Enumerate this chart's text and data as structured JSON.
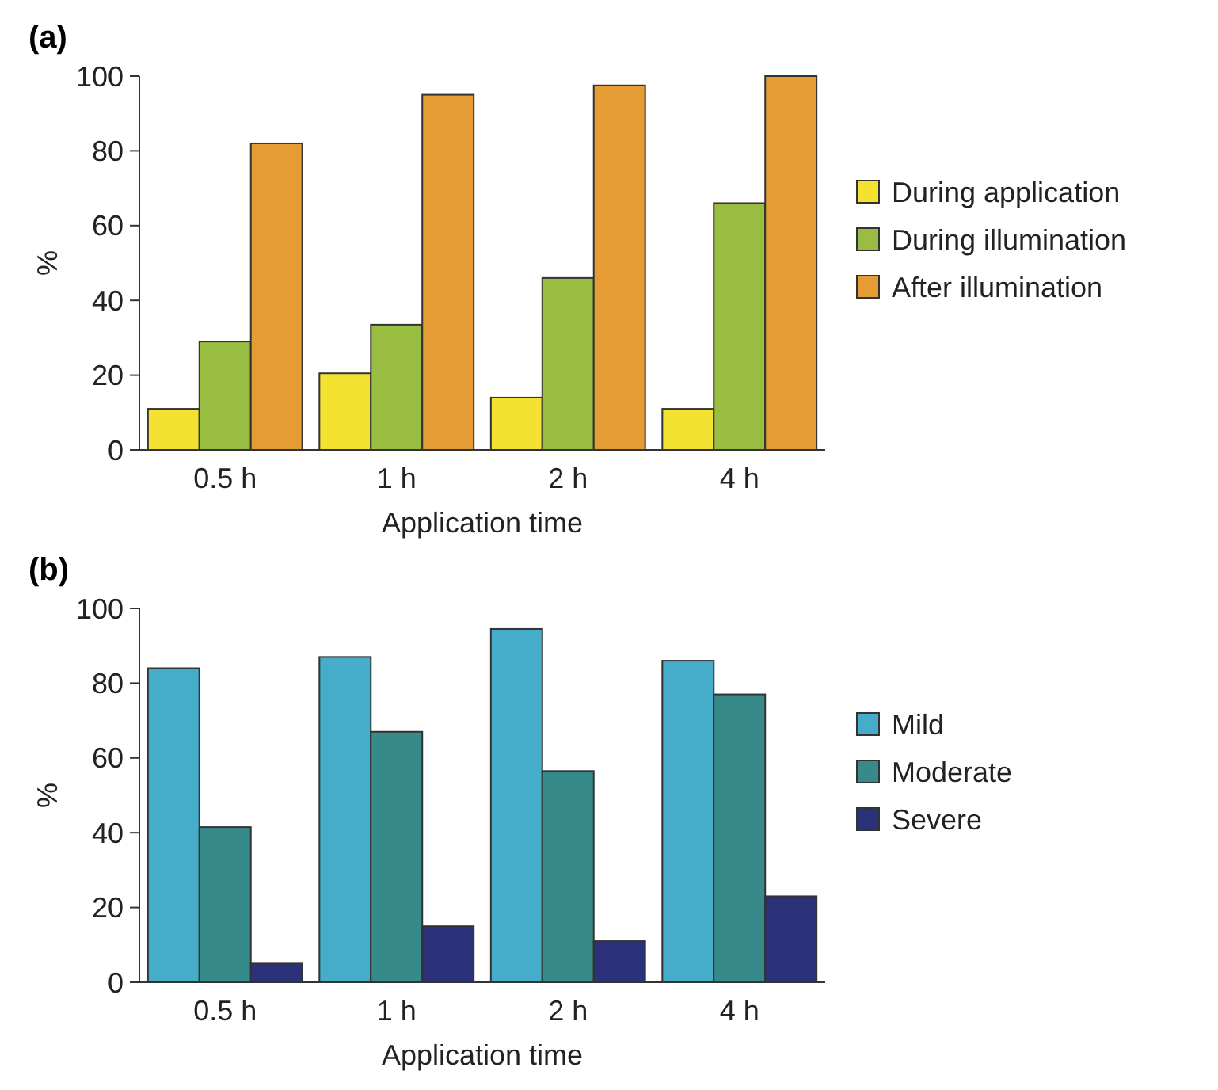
{
  "chart_data": [
    {
      "type": "bar",
      "title": "(a)",
      "xlabel": "Application time",
      "ylabel": "%",
      "categories": [
        "0.5 h",
        "1 h",
        "2 h",
        "4 h"
      ],
      "ylim": [
        0,
        100
      ],
      "yticks": [
        0,
        20,
        40,
        60,
        80,
        100
      ],
      "legend": "right",
      "series": [
        {
          "name": "During application",
          "color": "#f3e232",
          "values": [
            11,
            20.5,
            14,
            11
          ]
        },
        {
          "name": "During illumination",
          "color": "#98bd41",
          "values": [
            29,
            33.5,
            46,
            66
          ]
        },
        {
          "name": "After illumination",
          "color": "#e69c35",
          "values": [
            82,
            95,
            97.5,
            100
          ]
        }
      ]
    },
    {
      "type": "bar",
      "title": "(b)",
      "xlabel": "Application time",
      "ylabel": "%",
      "categories": [
        "0.5 h",
        "1 h",
        "2 h",
        "4 h"
      ],
      "ylim": [
        0,
        100
      ],
      "yticks": [
        0,
        20,
        40,
        60,
        80,
        100
      ],
      "legend": "right",
      "series": [
        {
          "name": "Mild",
          "color": "#45adca",
          "values": [
            84,
            87,
            94.5,
            86
          ]
        },
        {
          "name": "Moderate",
          "color": "#368a8a",
          "values": [
            41.5,
            67,
            56.5,
            77
          ]
        },
        {
          "name": "Severe",
          "color": "#2c327a",
          "values": [
            5,
            15,
            11,
            23
          ]
        }
      ]
    }
  ]
}
